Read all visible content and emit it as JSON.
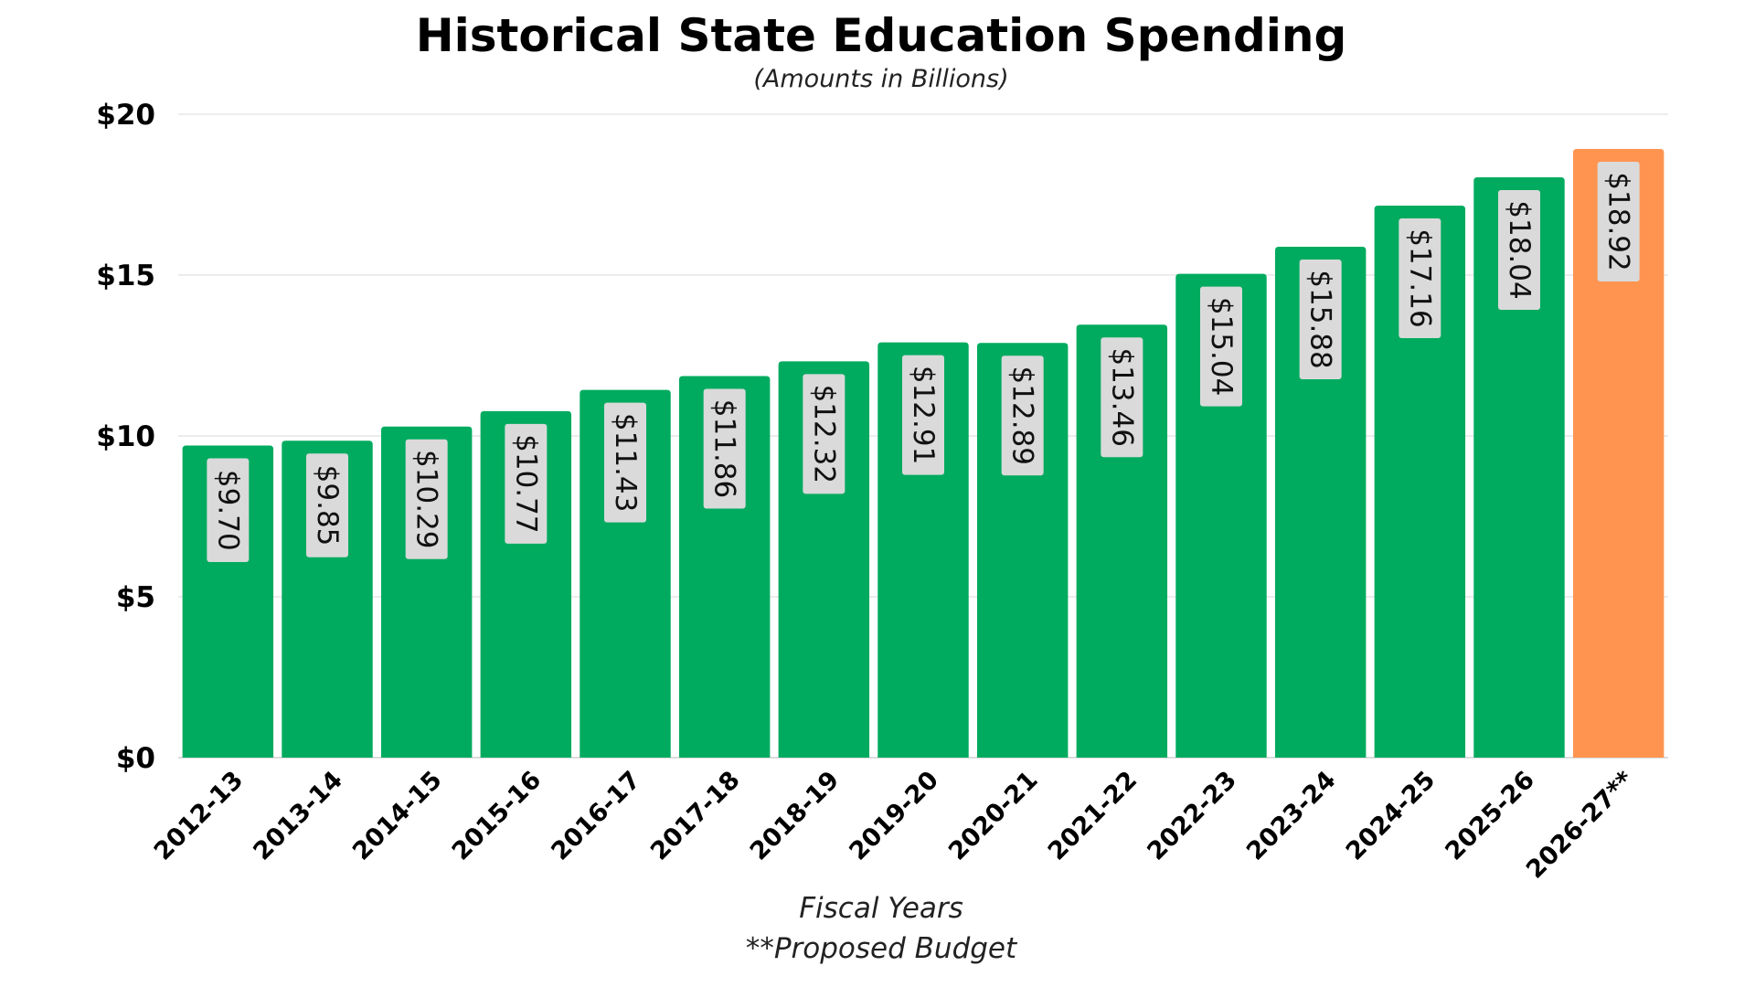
{
  "chart_data": {
    "type": "bar",
    "title": "Historical State Education Spending",
    "subtitle": "(Amounts in Billions)",
    "xlabel": "Fiscal Years",
    "note": "**Proposed Budget",
    "ylabel": "",
    "ylim": [
      0,
      20
    ],
    "yticks": [
      0,
      5,
      10,
      15,
      20
    ],
    "ytick_labels": [
      "$0",
      "$5",
      "$10",
      "$15",
      "$20"
    ],
    "grid": true,
    "legend": "none",
    "categories": [
      "2012-13",
      "2013-14",
      "2014-15",
      "2015-16",
      "2016-17",
      "2017-18",
      "2018-19",
      "2019-20",
      "2020-21",
      "2021-22",
      "2022-23",
      "2023-24",
      "2024-25",
      "2025-26",
      "2026-27**"
    ],
    "values": [
      9.7,
      9.85,
      10.29,
      10.77,
      11.43,
      11.86,
      12.32,
      12.91,
      12.89,
      13.46,
      15.04,
      15.88,
      17.16,
      18.04,
      18.92
    ],
    "data_labels": [
      "$9.70",
      "$9.85",
      "$10.29",
      "$10.77",
      "$11.43",
      "$11.86",
      "$12.32",
      "$12.91",
      "$12.89",
      "$13.46",
      "$15.04",
      "$15.88",
      "$17.16",
      "$18.04",
      "$18.92"
    ],
    "colors": {
      "actual": "#00ab5f",
      "proposed": "#ff9450",
      "label_box": "#dadada"
    },
    "bar_color_keys": [
      "actual",
      "actual",
      "actual",
      "actual",
      "actual",
      "actual",
      "actual",
      "actual",
      "actual",
      "actual",
      "actual",
      "actual",
      "actual",
      "actual",
      "proposed"
    ]
  }
}
